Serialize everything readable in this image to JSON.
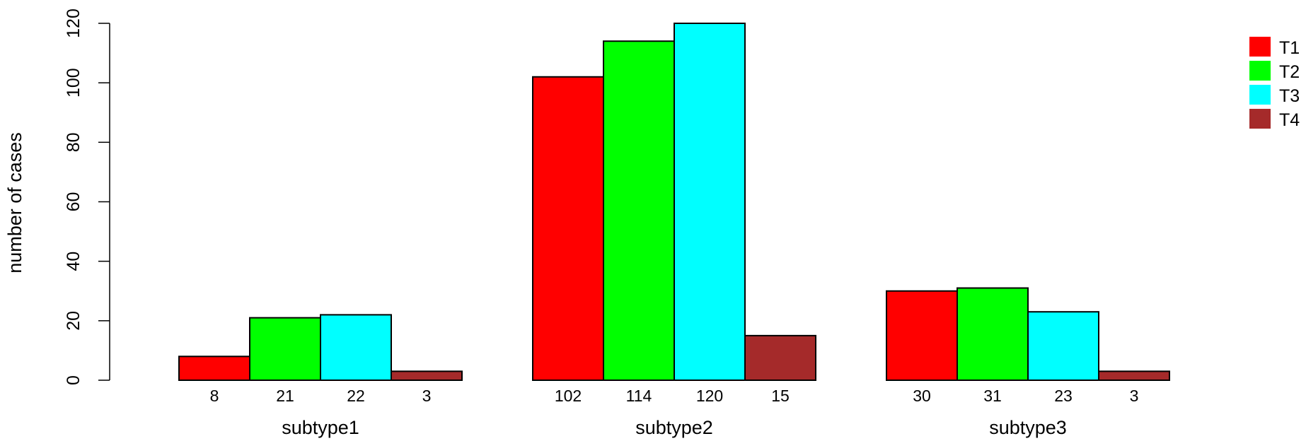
{
  "chart_data": {
    "type": "bar",
    "title": "",
    "xlabel": "",
    "ylabel": "number of cases",
    "ylim": [
      0,
      120
    ],
    "yticks": [
      0,
      20,
      40,
      60,
      80,
      100,
      120
    ],
    "grid": false,
    "legend_position": "top-right",
    "categories": [
      "subtype1",
      "subtype2",
      "subtype3"
    ],
    "series": [
      {
        "name": "T1",
        "color": "#ff0000",
        "values": [
          8,
          102,
          30
        ]
      },
      {
        "name": "T2",
        "color": "#00ff00",
        "values": [
          21,
          114,
          31
        ]
      },
      {
        "name": "T3",
        "color": "#00ffff",
        "values": [
          22,
          120,
          23
        ]
      },
      {
        "name": "T4",
        "color": "#a52a2a",
        "values": [
          3,
          15,
          3
        ]
      }
    ],
    "bar_labels": [
      [
        "8",
        "21",
        "22",
        "3"
      ],
      [
        "102",
        "114",
        "120",
        "15"
      ],
      [
        "30",
        "31",
        "23",
        "3"
      ]
    ]
  }
}
